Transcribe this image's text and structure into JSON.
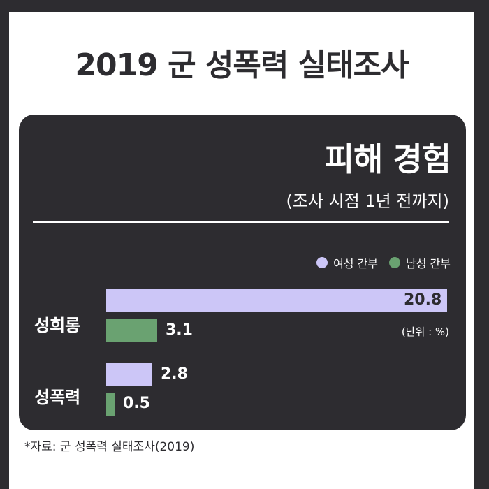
{
  "title": "2019 군 성폭력 실태조사",
  "chart_data": {
    "type": "bar",
    "title": "피해 경험",
    "subtitle": "(조사 시점 1년 전까지)",
    "unit": "(단위 : %)",
    "categories": [
      "성희롱",
      "성폭력"
    ],
    "series": [
      {
        "name": "여성 간부",
        "color": "#ccc6f7",
        "values": [
          20.8,
          2.8
        ]
      },
      {
        "name": "남성 간부",
        "color": "#6aa271",
        "values": [
          3.1,
          0.5
        ]
      }
    ],
    "legend": "top-right",
    "orientation": "horizontal",
    "grid": false
  },
  "source": "*자료: 군 성폭력 실태조사(2019)"
}
